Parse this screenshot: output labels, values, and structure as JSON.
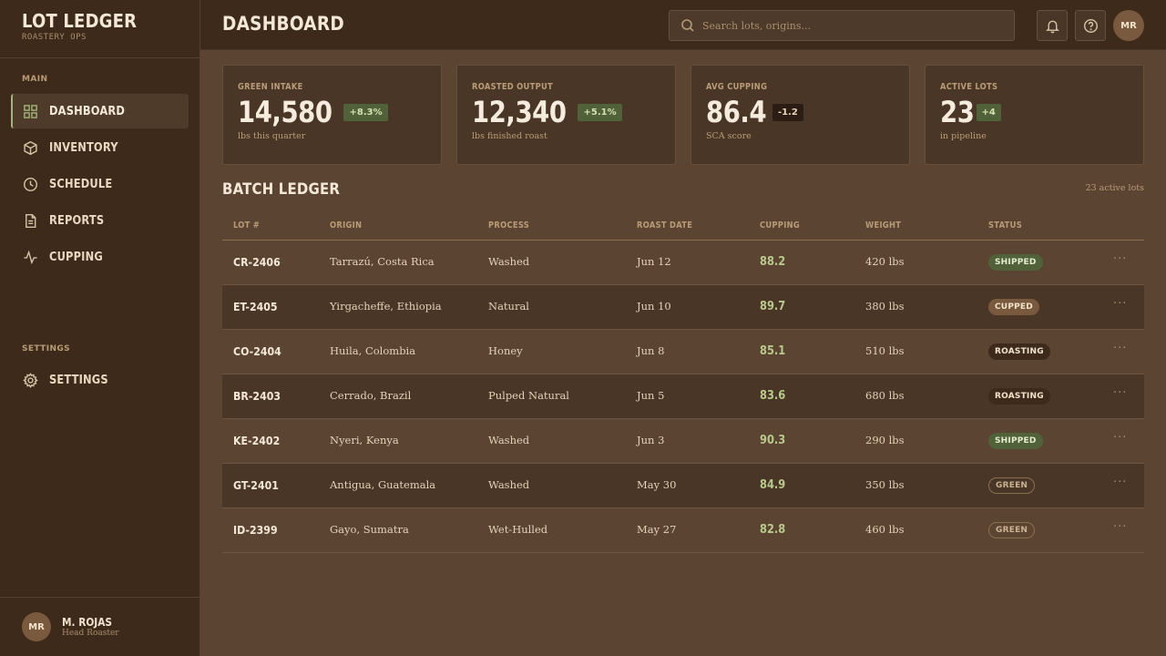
{
  "brand": {
    "title": "LOT LEDGER",
    "subtitle": "ROASTERY OPS"
  },
  "sidebar": {
    "main_label": "MAIN",
    "items": [
      {
        "label": "DASHBOARD",
        "icon": "grid-icon"
      },
      {
        "label": "INVENTORY",
        "icon": "box-icon"
      },
      {
        "label": "SCHEDULE",
        "icon": "clock-icon"
      },
      {
        "label": "REPORTS",
        "icon": "document-icon"
      },
      {
        "label": "CUPPING",
        "icon": "activity-icon"
      }
    ],
    "settings_label": "SETTINGS",
    "settings_item": {
      "label": "SETTINGS",
      "icon": "gear-icon"
    },
    "user": {
      "initials": "MR",
      "name": "M. ROJAS",
      "role": "Head Roaster"
    }
  },
  "header": {
    "title": "DASHBOARD",
    "search_placeholder": "Search lots, origins...",
    "avatar_initials": "MR"
  },
  "stats": [
    {
      "label": "GREEN INTAKE",
      "value": "14,580",
      "delta": "+8.3%",
      "delta_type": "pos",
      "caption": "lbs this quarter"
    },
    {
      "label": "ROASTED OUTPUT",
      "value": "12,340",
      "delta": "+5.1%",
      "delta_type": "pos",
      "caption": "lbs finished roast"
    },
    {
      "label": "AVG CUPPING",
      "value": "86.4",
      "delta": "-1.2",
      "delta_type": "neg",
      "caption": "SCA score"
    },
    {
      "label": "ACTIVE LOTS",
      "value": "23",
      "delta": "+4",
      "delta_type": "pos",
      "caption": "in pipeline"
    }
  ],
  "ledger": {
    "title": "BATCH LEDGER",
    "meta": "23 active lots",
    "columns": [
      "LOT #",
      "ORIGIN",
      "PROCESS",
      "ROAST DATE",
      "CUPPING",
      "WEIGHT",
      "STATUS"
    ],
    "rows": [
      {
        "lot": "CR-2406",
        "origin": "Tarrazú, Costa Rica",
        "process": "Washed",
        "date": "Jun 12",
        "cupping": "88.2",
        "weight": "420 lbs",
        "status": "SHIPPED",
        "status_type": "shipped"
      },
      {
        "lot": "ET-2405",
        "origin": "Yirgacheffe, Ethiopia",
        "process": "Natural",
        "date": "Jun 10",
        "cupping": "89.7",
        "weight": "380 lbs",
        "status": "CUPPED",
        "status_type": "cupped"
      },
      {
        "lot": "CO-2404",
        "origin": "Huila, Colombia",
        "process": "Honey",
        "date": "Jun 8",
        "cupping": "85.1",
        "weight": "510 lbs",
        "status": "ROASTING",
        "status_type": "roasting"
      },
      {
        "lot": "BR-2403",
        "origin": "Cerrado, Brazil",
        "process": "Pulped Natural",
        "date": "Jun 5",
        "cupping": "83.6",
        "weight": "680 lbs",
        "status": "ROASTING",
        "status_type": "roasting"
      },
      {
        "lot": "KE-2402",
        "origin": "Nyeri, Kenya",
        "process": "Washed",
        "date": "Jun 3",
        "cupping": "90.3",
        "weight": "290 lbs",
        "status": "SHIPPED",
        "status_type": "shipped"
      },
      {
        "lot": "GT-2401",
        "origin": "Antigua, Guatemala",
        "process": "Washed",
        "date": "May 30",
        "cupping": "84.9",
        "weight": "350 lbs",
        "status": "GREEN",
        "status_type": "green"
      },
      {
        "lot": "ID-2399",
        "origin": "Gayo, Sumatra",
        "process": "Wet-Hulled",
        "date": "May 27",
        "cupping": "82.8",
        "weight": "460 lbs",
        "status": "GREEN",
        "status_type": "green"
      }
    ],
    "row_action": "···"
  }
}
